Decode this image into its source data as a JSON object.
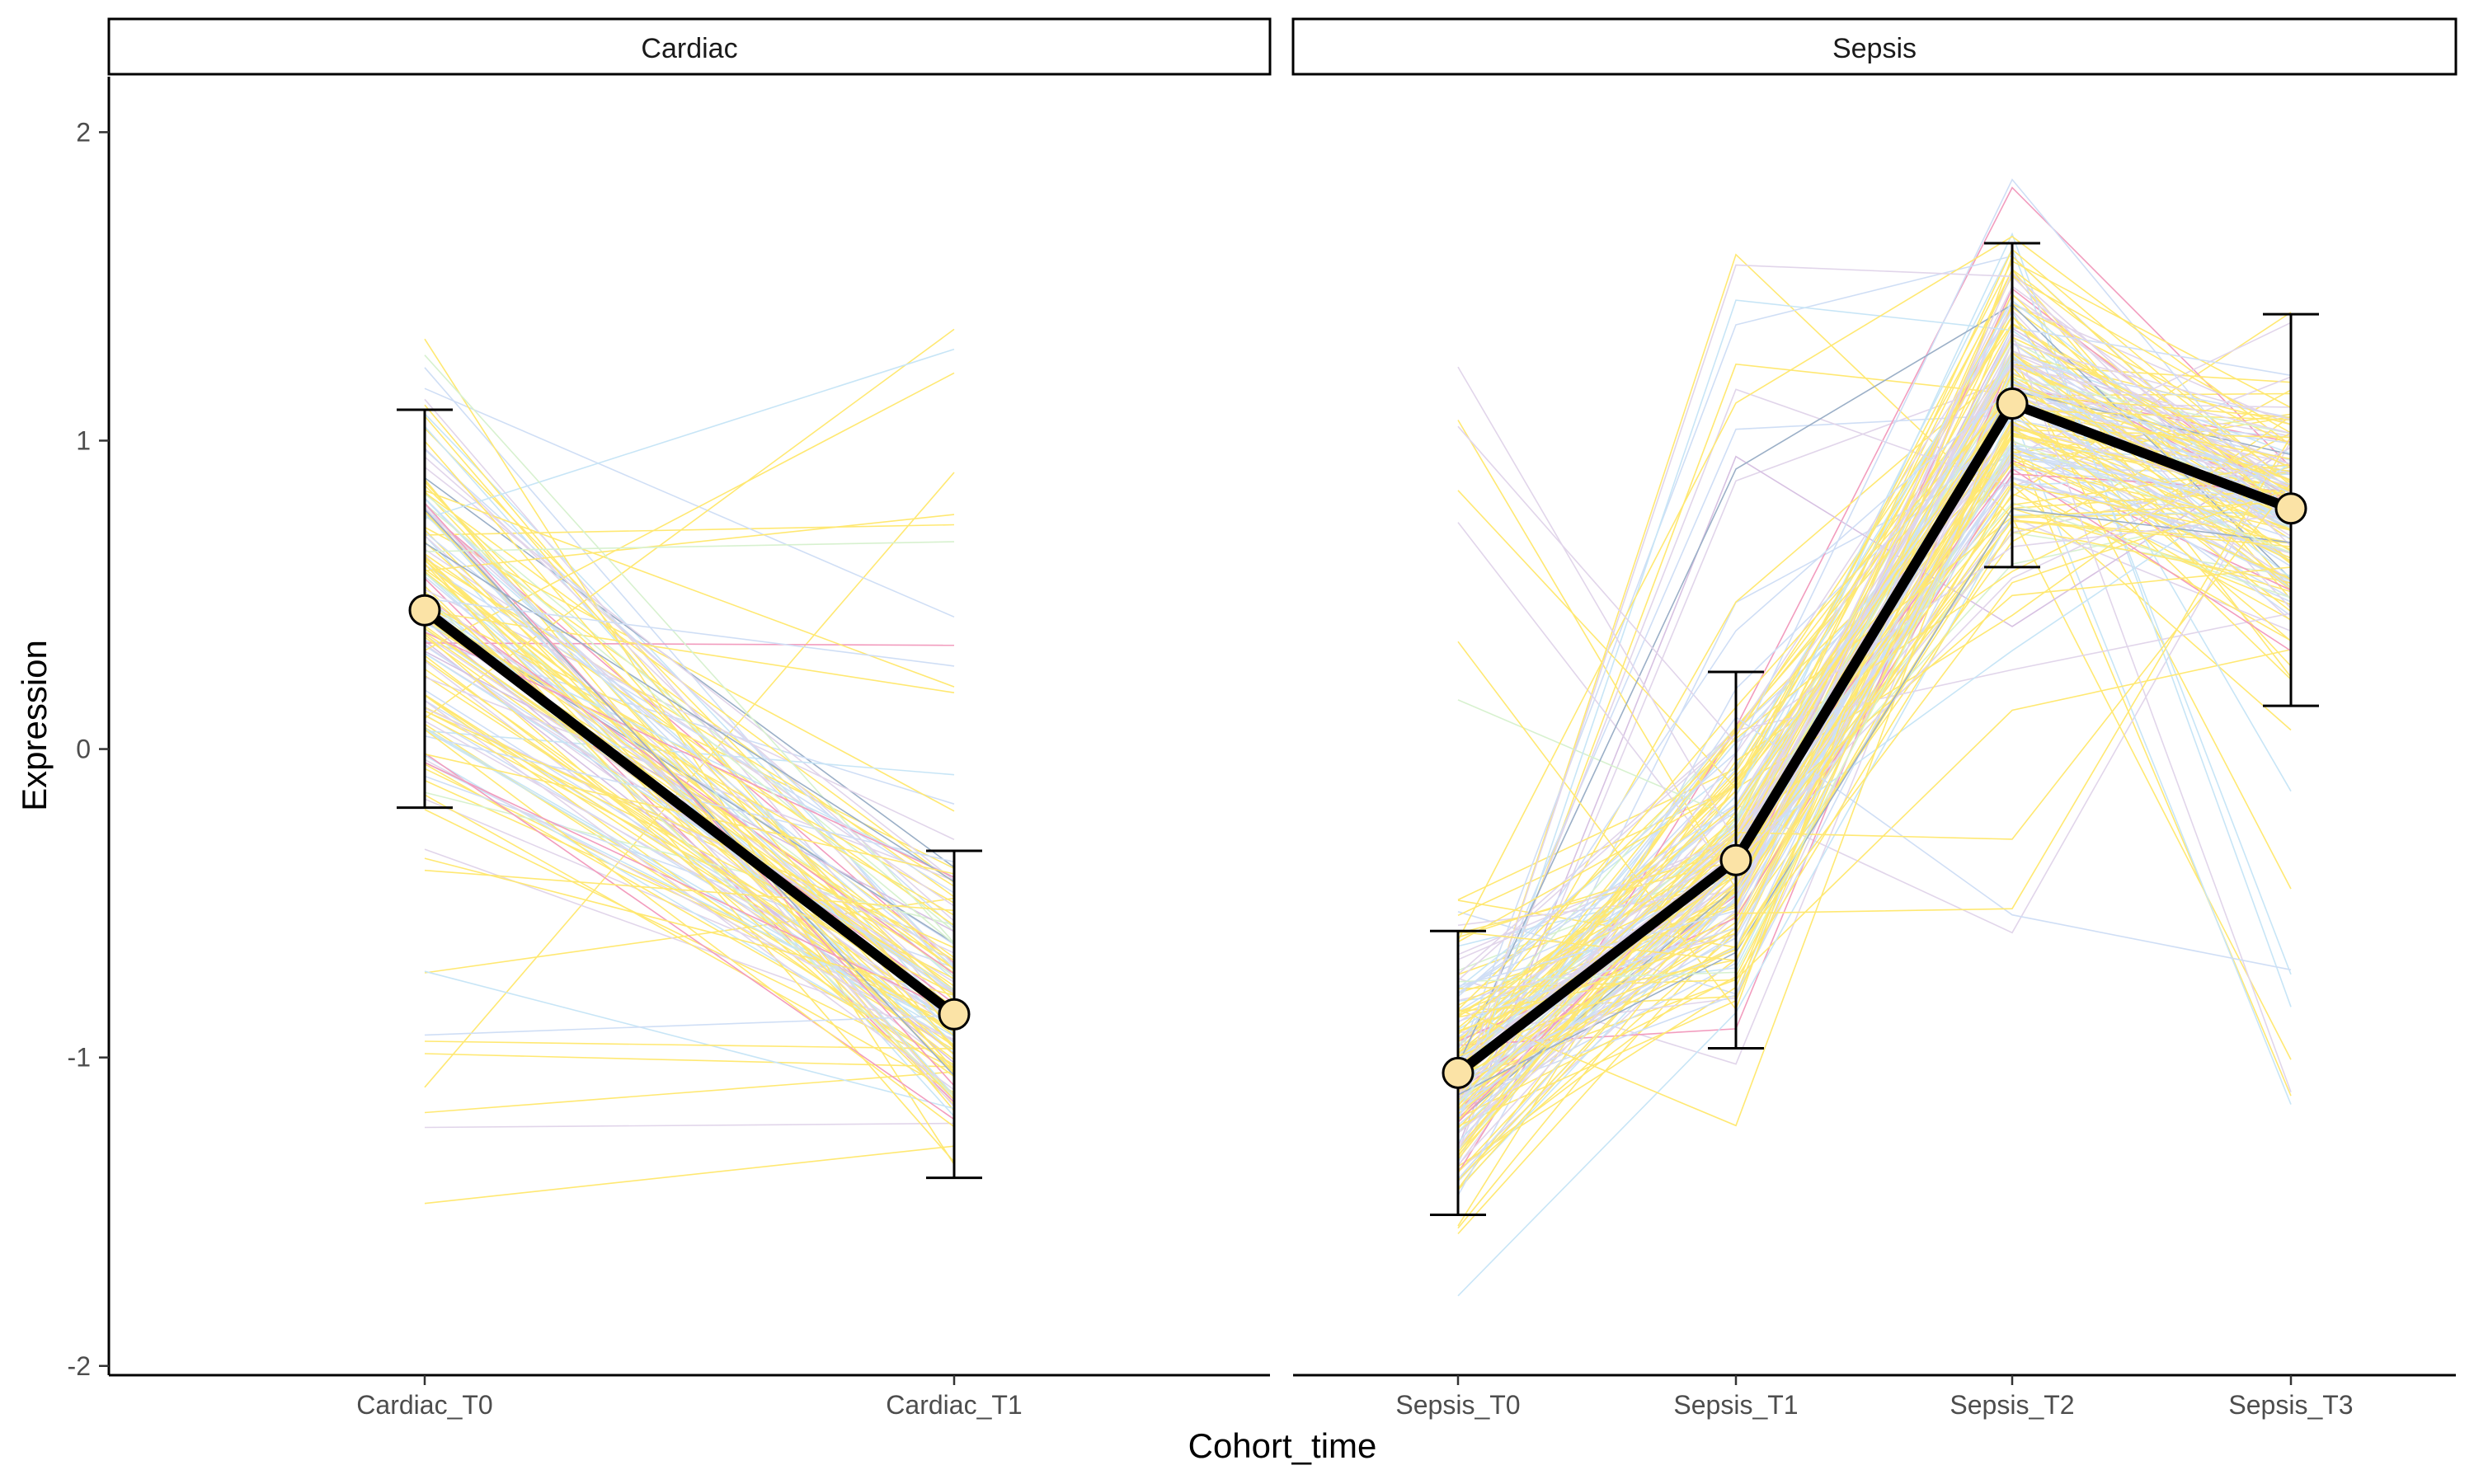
{
  "chart_data": {
    "type": "line",
    "xlabel": "Cohort_time",
    "ylabel": "Expression",
    "ylim": [
      -2.03,
      2.18
    ],
    "y_ticks": [
      -2,
      -1,
      0,
      1,
      2
    ],
    "y_tick_labels": [
      "-2",
      "-1",
      "0",
      "1",
      "2"
    ],
    "grid": false,
    "legend": "none",
    "summary_color": "#000000",
    "point_fill": "#FBE3A6",
    "individual_line_colors": [
      "#FFD700",
      "#C9B3DA",
      "#A9C4EE",
      "#9BD0F0",
      "#B8E6A8",
      "#E84D8A",
      "#4A6F9A",
      "#B78FCB"
    ],
    "panels": [
      {
        "strip": "Cardiac",
        "categories": [
          "Cardiac_T0",
          "Cardiac_T1"
        ],
        "mean": [
          0.45,
          -0.86
        ],
        "lower": [
          -0.19,
          -1.39
        ],
        "upper": [
          1.1,
          -0.33
        ],
        "individual_range": {
          "Cardiac_T0": [
            -1.5,
            1.45
          ],
          "Cardiac_T1": [
            -1.5,
            1.37
          ]
        }
      },
      {
        "strip": "Sepsis",
        "categories": [
          "Sepsis_T0",
          "Sepsis_T1",
          "Sepsis_T2",
          "Sepsis_T3"
        ],
        "mean": [
          -1.05,
          -0.36,
          1.12,
          0.78
        ],
        "lower": [
          -1.51,
          -0.97,
          0.59,
          0.14
        ],
        "upper": [
          -0.59,
          0.25,
          1.64,
          1.41
        ],
        "individual_range": {
          "Sepsis_T0": [
            -1.82,
            1.31
          ],
          "Sepsis_T1": [
            -1.35,
            1.94
          ],
          "Sepsis_T2": [
            -0.6,
            1.98
          ],
          "Sepsis_T3": [
            -1.2,
            1.49
          ]
        }
      }
    ]
  }
}
